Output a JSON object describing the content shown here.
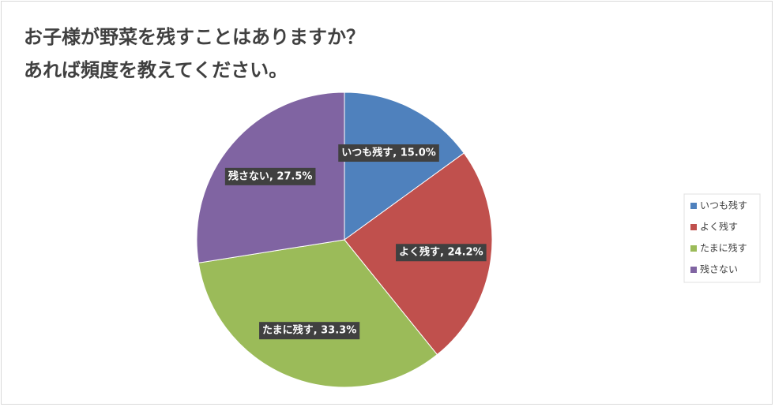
{
  "chart_data": {
    "type": "pie",
    "title": [
      "お子様が野菜を残すことはありますか？",
      "あれば頻度を教えてください。"
    ],
    "categories": [
      "いつも残す",
      "よく残す",
      "たまに残す",
      "残さない"
    ],
    "values": [
      15.0,
      24.2,
      33.3,
      27.5
    ],
    "value_labels": [
      "いつも残す, 15.0%",
      "よく残す, 24.2%",
      "たまに残す, 33.3%",
      "残さない, 27.5%"
    ],
    "colors": [
      "#4f81bd",
      "#c0504d",
      "#9bbb59",
      "#8064a2"
    ],
    "legend": "right"
  }
}
